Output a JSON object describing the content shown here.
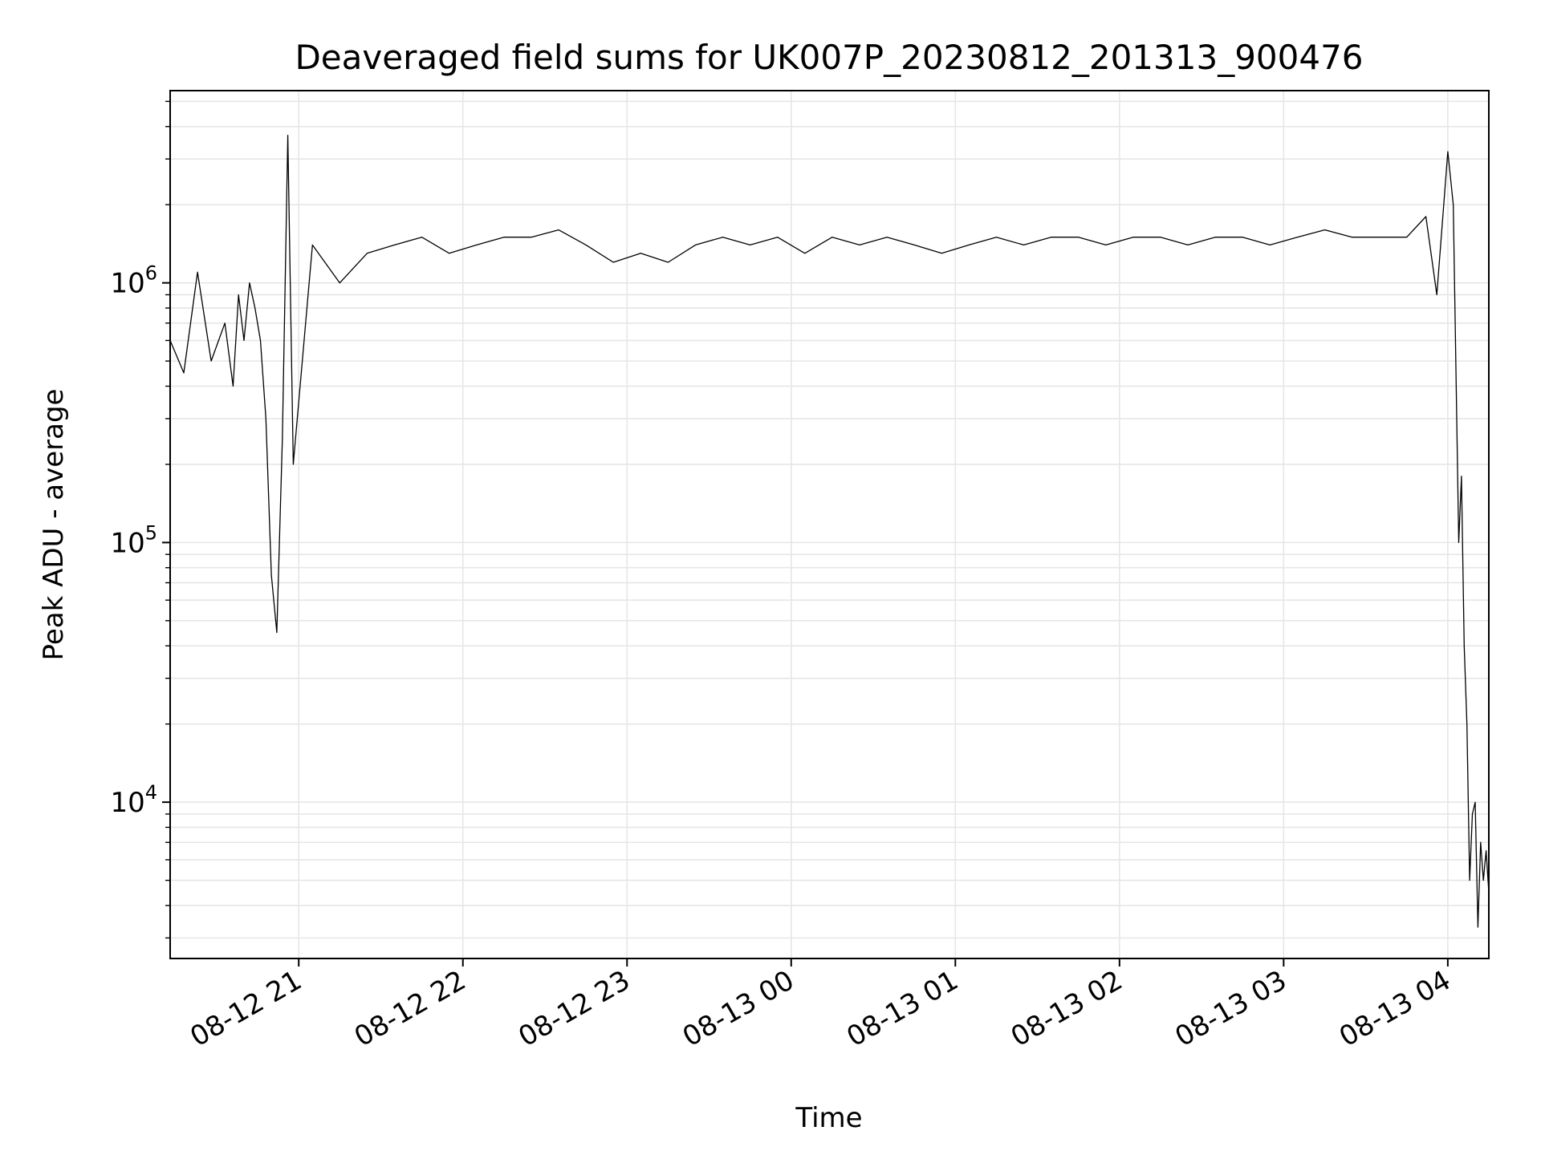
{
  "chart_data": {
    "type": "line",
    "title": "Deaveraged field sums for UK007P_20230812_201313_900476",
    "xlabel": "Time",
    "ylabel": "Peak ADU - average",
    "y_scale": "log",
    "ylim": [
      2500,
      5500000
    ],
    "xlim": [
      "2023-08-12 20:13",
      "2023-08-13 04:15"
    ],
    "grid": true,
    "line_color": "#000000",
    "x_ticks": [
      {
        "value": "2023-08-12 21:00",
        "label": "08-12 21"
      },
      {
        "value": "2023-08-12 22:00",
        "label": "08-12 22"
      },
      {
        "value": "2023-08-12 23:00",
        "label": "08-12 23"
      },
      {
        "value": "2023-08-13 00:00",
        "label": "08-13 00"
      },
      {
        "value": "2023-08-13 01:00",
        "label": "08-13 01"
      },
      {
        "value": "2023-08-13 02:00",
        "label": "08-13 02"
      },
      {
        "value": "2023-08-13 03:00",
        "label": "08-13 03"
      },
      {
        "value": "2023-08-13 04:00",
        "label": "08-13 04"
      }
    ],
    "y_ticks": [
      {
        "value": 10000,
        "base": "10",
        "exp": "4"
      },
      {
        "value": 100000,
        "base": "10",
        "exp": "5"
      },
      {
        "value": 1000000,
        "base": "10",
        "exp": "6"
      }
    ],
    "series": [
      {
        "x": [
          "2023-08-12 20:13",
          "2023-08-12 20:18",
          "2023-08-12 20:23",
          "2023-08-12 20:28",
          "2023-08-12 20:33",
          "2023-08-12 20:36",
          "2023-08-12 20:38",
          "2023-08-12 20:40",
          "2023-08-12 20:42",
          "2023-08-12 20:44",
          "2023-08-12 20:46",
          "2023-08-12 20:48",
          "2023-08-12 20:50",
          "2023-08-12 20:52",
          "2023-08-12 20:54",
          "2023-08-12 20:56",
          "2023-08-12 20:58",
          "2023-08-12 21:05",
          "2023-08-12 21:15",
          "2023-08-12 21:25",
          "2023-08-12 21:35",
          "2023-08-12 21:45",
          "2023-08-12 21:55",
          "2023-08-12 22:05",
          "2023-08-12 22:15",
          "2023-08-12 22:25",
          "2023-08-12 22:35",
          "2023-08-12 22:45",
          "2023-08-12 22:55",
          "2023-08-12 23:05",
          "2023-08-12 23:15",
          "2023-08-12 23:25",
          "2023-08-12 23:35",
          "2023-08-12 23:45",
          "2023-08-12 23:55",
          "2023-08-13 00:05",
          "2023-08-13 00:15",
          "2023-08-13 00:25",
          "2023-08-13 00:35",
          "2023-08-13 00:45",
          "2023-08-13 00:55",
          "2023-08-13 01:05",
          "2023-08-13 01:15",
          "2023-08-13 01:25",
          "2023-08-13 01:35",
          "2023-08-13 01:45",
          "2023-08-13 01:55",
          "2023-08-13 02:05",
          "2023-08-13 02:15",
          "2023-08-13 02:25",
          "2023-08-13 02:35",
          "2023-08-13 02:45",
          "2023-08-13 02:55",
          "2023-08-13 03:05",
          "2023-08-13 03:15",
          "2023-08-13 03:25",
          "2023-08-13 03:35",
          "2023-08-13 03:45",
          "2023-08-13 03:52",
          "2023-08-13 03:56",
          "2023-08-13 04:00",
          "2023-08-13 04:02",
          "2023-08-13 04:04",
          "2023-08-13 04:05",
          "2023-08-13 04:06",
          "2023-08-13 04:07",
          "2023-08-13 04:08",
          "2023-08-13 04:09",
          "2023-08-13 04:10",
          "2023-08-13 04:11",
          "2023-08-13 04:12",
          "2023-08-13 04:13",
          "2023-08-13 04:14",
          "2023-08-13 04:15"
        ],
        "y": [
          600000,
          450000,
          1100000,
          500000,
          700000,
          400000,
          900000,
          600000,
          1000000,
          800000,
          600000,
          300000,
          75000,
          45000,
          250000,
          3700000,
          200000,
          1400000,
          1000000,
          1300000,
          1400000,
          1500000,
          1300000,
          1400000,
          1500000,
          1500000,
          1600000,
          1400000,
          1200000,
          1300000,
          1200000,
          1400000,
          1500000,
          1400000,
          1500000,
          1300000,
          1500000,
          1400000,
          1500000,
          1400000,
          1300000,
          1400000,
          1500000,
          1400000,
          1500000,
          1500000,
          1400000,
          1500000,
          1500000,
          1400000,
          1500000,
          1500000,
          1400000,
          1500000,
          1600000,
          1500000,
          1500000,
          1500000,
          1800000,
          900000,
          3200000,
          2000000,
          100000,
          180000,
          40000,
          20000,
          5000,
          9000,
          10000,
          3300,
          7000,
          5000,
          6500,
          4500
        ]
      }
    ]
  }
}
